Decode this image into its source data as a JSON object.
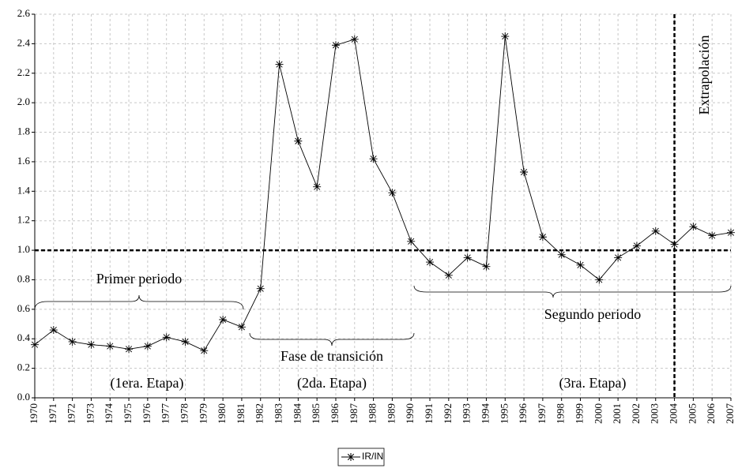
{
  "chart_data": {
    "type": "line",
    "x": [
      1970,
      1971,
      1972,
      1973,
      1974,
      1975,
      1976,
      1977,
      1978,
      1979,
      1980,
      1981,
      1982,
      1983,
      1984,
      1985,
      1986,
      1987,
      1988,
      1989,
      1990,
      1991,
      1992,
      1993,
      1994,
      1995,
      1996,
      1997,
      1998,
      1999,
      2000,
      2001,
      2002,
      2003,
      2004,
      2005,
      2006,
      2007
    ],
    "series": [
      {
        "name": "IR/IN",
        "color": "#000000",
        "values": [
          0.36,
          0.46,
          0.38,
          0.36,
          0.35,
          0.33,
          0.35,
          0.41,
          0.38,
          0.32,
          0.53,
          0.48,
          0.74,
          2.26,
          1.74,
          1.43,
          2.39,
          2.43,
          1.62,
          1.39,
          1.06,
          0.92,
          0.83,
          0.95,
          0.89,
          2.45,
          1.53,
          1.09,
          0.97,
          0.9,
          0.8,
          0.95,
          1.03,
          1.13,
          1.04,
          1.16,
          1.1,
          1.12
        ]
      }
    ],
    "xlim": [
      1970,
      2007
    ],
    "xticks": [
      1970,
      1971,
      1972,
      1973,
      1974,
      1975,
      1976,
      1977,
      1978,
      1979,
      1980,
      1981,
      1982,
      1983,
      1984,
      1985,
      1986,
      1987,
      1988,
      1989,
      1990,
      1991,
      1992,
      1993,
      1994,
      1995,
      1996,
      1997,
      1998,
      1999,
      2000,
      2001,
      2002,
      2003,
      2004,
      2005,
      2006,
      2007
    ],
    "ylim": [
      0,
      2.6
    ],
    "yticks": [
      {
        "value": 0,
        "label": "0.0"
      },
      {
        "value": 0.2,
        "label": "0.2"
      },
      {
        "value": 0.4,
        "label": "0.4"
      },
      {
        "value": 0.6,
        "label": "0.6"
      },
      {
        "value": 0.8,
        "label": "0.8"
      },
      {
        "value": 1,
        "label": "1.0"
      },
      {
        "value": 1.2,
        "label": "1.2"
      },
      {
        "value": 1.4,
        "label": "1.4"
      },
      {
        "value": 1.6,
        "label": "1.6"
      },
      {
        "value": 1.8,
        "label": "1.8"
      },
      {
        "value": 2,
        "label": "2.0"
      },
      {
        "value": 2.2,
        "label": "2.2"
      },
      {
        "value": 2.4,
        "label": "2.4"
      },
      {
        "value": 2.6,
        "label": "2.6"
      }
    ],
    "grid": true,
    "reference_lines": {
      "y": 1.0,
      "x": 2004
    },
    "annotations": [
      "Primer periodo",
      "(1era. Etapa)",
      "Fase de transición",
      "(2da. Etapa)",
      "Segundo periodo",
      "(3ra. Etapa)",
      "Extrapolación"
    ]
  }
}
